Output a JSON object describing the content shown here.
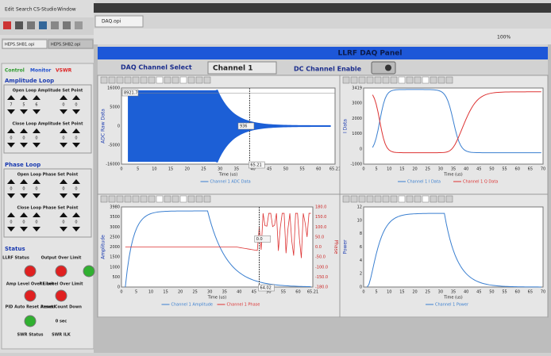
{
  "menu": [
    "Edit",
    "Search",
    "CS-Studio",
    "Window"
  ],
  "file_tabs": [
    "HEPS.SHB1.opi",
    "HEPS.SHB2.opi"
  ],
  "editor_tab": "DAQ.opi",
  "zoom": "100%",
  "left_panel": {
    "tabs": [
      "Control",
      "Monitor",
      "VSWR"
    ],
    "loops": [
      {
        "title": "Amplitude Loop",
        "groups": [
          {
            "label": "Open Loop Amplitude Set Point",
            "values": [
              "7",
              "5",
              "6",
              "0",
              "0"
            ]
          },
          {
            "label": "Close Loop Amplitude Set Point",
            "values": [
              "0",
              "0",
              "0",
              "0",
              "0"
            ]
          }
        ]
      },
      {
        "title": "Phase Loop",
        "groups": [
          {
            "label": "Open Loop Phase Set Point",
            "values": [
              "0",
              "0",
              "0",
              "0",
              "0"
            ]
          },
          {
            "label": "Close Loop Phase Set Point",
            "values": [
              "0",
              "0",
              "0",
              "0",
              "0"
            ]
          }
        ]
      }
    ],
    "status": {
      "title": "Status",
      "items": [
        "LLRF Status",
        "Output Over Limit",
        "Amp Level Over Limit",
        "RF Level Over Limit",
        "PID Auto Reset Armed",
        "Reset Count Down",
        "0 sec",
        "SWR Status",
        "SWR ILK"
      ]
    }
  },
  "panel": {
    "title": "LLRF DAQ Panel",
    "channel_select_label": "DAQ Channel Select",
    "channel": "Channel 1",
    "dc_enable_label": "DC Channel Enable"
  },
  "plots": [
    {
      "y_title": "ADC Raw Data",
      "x_title": "Time (us)",
      "yticks": [
        "16000",
        "5000",
        "0",
        "-5000",
        "-16000"
      ],
      "xticks": [
        "0",
        "5",
        "10",
        "15",
        "20",
        "25",
        "30",
        "35",
        "40",
        "45",
        "50",
        "55",
        "60",
        "65.21"
      ],
      "markers": [
        "8921.7",
        "936",
        "65.21"
      ],
      "legend": [
        "Channel 1 ADC Data"
      ]
    },
    {
      "y_title": "I Data",
      "x_title": "Time (us)",
      "yticks": [
        "3419",
        "3000",
        "2000",
        "1000",
        "0",
        "-1000"
      ],
      "xticks": [
        "0",
        "5",
        "10",
        "15",
        "20",
        "25",
        "30",
        "35",
        "40",
        "45",
        "50",
        "55",
        "60",
        "65",
        "70"
      ],
      "markers": [],
      "legend": [
        "Channel 1 I Data",
        "Channel 1 Q Data"
      ]
    },
    {
      "y_title": "Amplitude",
      "y2_title": "Phase",
      "x_title": "Time (us)",
      "yticks": [
        "3980",
        "3500",
        "3000",
        "2500",
        "2000",
        "1500",
        "1000",
        "500",
        "0"
      ],
      "y2ticks": [
        "180.0",
        "150.0",
        "100.0",
        "50.0",
        "0.0",
        "-50.0",
        "-100.0",
        "-150.0",
        "-180.0"
      ],
      "xticks": [
        "0",
        "5",
        "10",
        "15",
        "20",
        "25",
        "30",
        "35",
        "40",
        "45",
        "50",
        "55",
        "60",
        "65.21"
      ],
      "markers": [
        "0.0",
        "64.02"
      ],
      "legend": [
        "Channel 1 Amplitude",
        "Channel 1 Phase"
      ]
    },
    {
      "y_title": "Power",
      "x_title": "Time (us)",
      "yticks": [
        "12",
        "10",
        "8",
        "6",
        "4",
        "2",
        "0"
      ],
      "xticks": [
        "0",
        "5",
        "10",
        "15",
        "20",
        "25",
        "30",
        "35",
        "40",
        "45",
        "50",
        "55",
        "60",
        "65",
        "70"
      ],
      "markers": [],
      "legend": [
        "Channel 1 Power"
      ]
    }
  ]
}
